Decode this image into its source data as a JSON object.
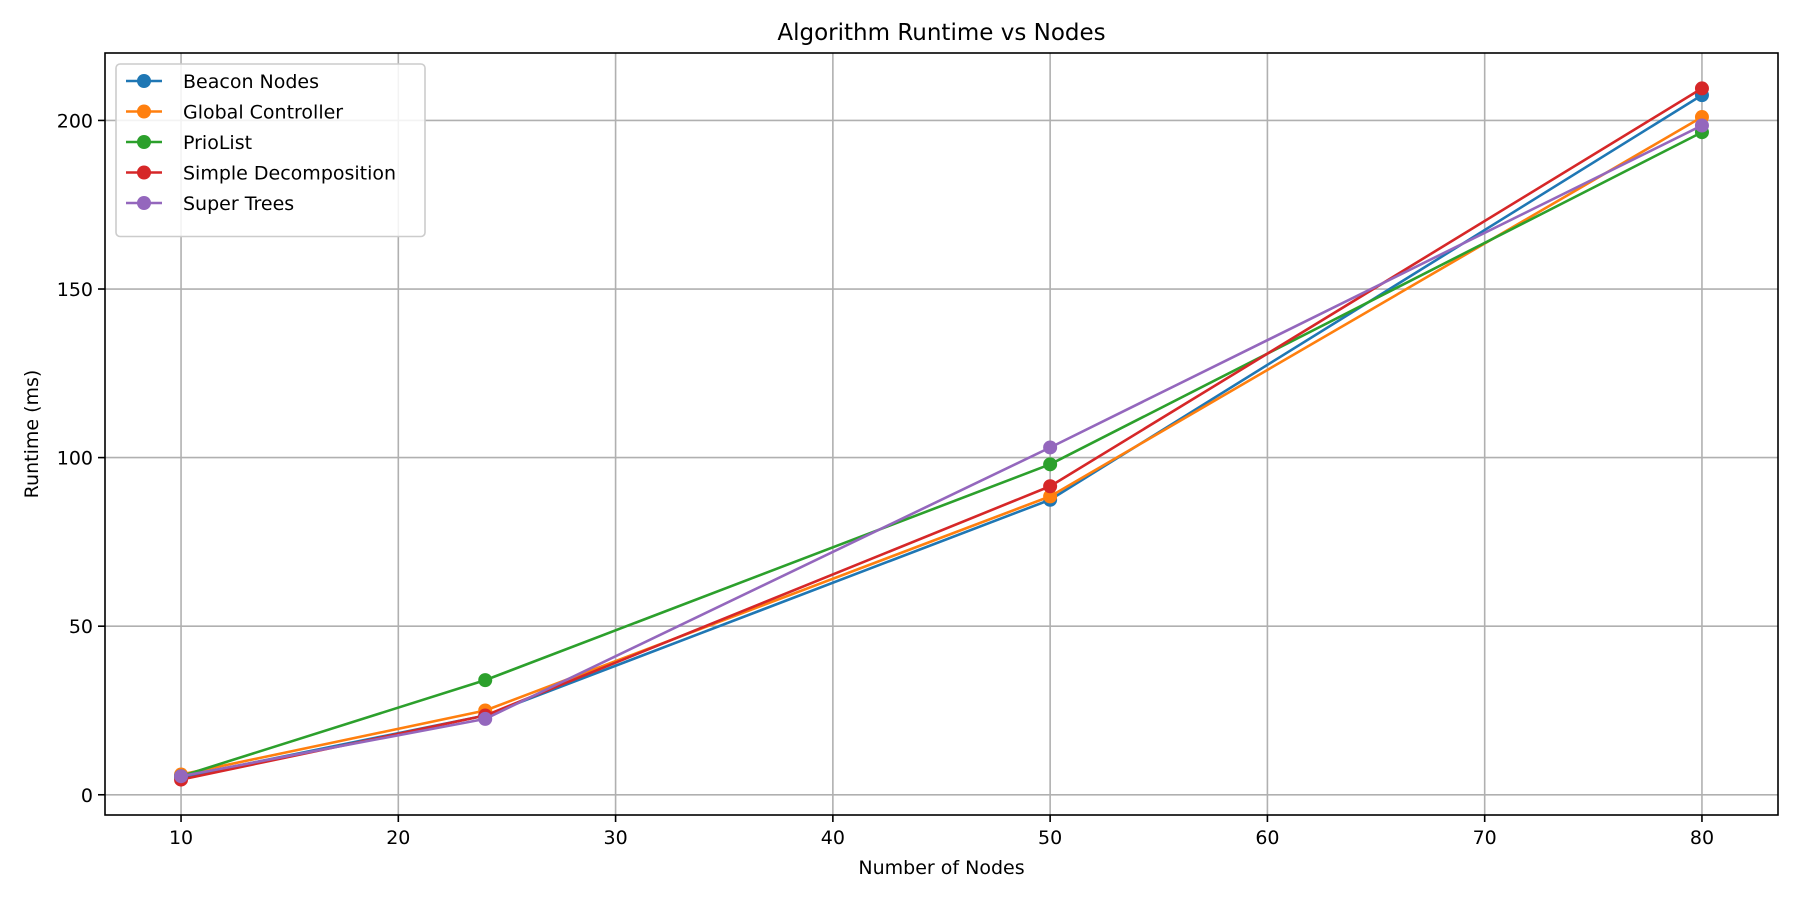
{
  "chart_data": {
    "type": "line",
    "title": "Algorithm Runtime vs Nodes",
    "xlabel": "Number of Nodes",
    "ylabel": "Runtime (ms)",
    "x": [
      10,
      24,
      50,
      80
    ],
    "xlim": [
      6.5,
      83.5
    ],
    "ylim": [
      -6,
      220
    ],
    "xticks": [
      10,
      20,
      30,
      40,
      50,
      60,
      70,
      80
    ],
    "yticks": [
      0,
      50,
      100,
      150,
      200
    ],
    "grid": true,
    "legend_position": "top-left",
    "series": [
      {
        "name": "Beacon Nodes",
        "color": "#1f77b4",
        "values": [
          5.2,
          23.5,
          87.5,
          207.5
        ]
      },
      {
        "name": "Global Controller",
        "color": "#ff7f0e",
        "values": [
          6.0,
          25.0,
          88.5,
          201.0
        ]
      },
      {
        "name": "PrioList",
        "color": "#2ca02c",
        "values": [
          5.5,
          34.0,
          98.0,
          196.5
        ]
      },
      {
        "name": "Simple Decomposition",
        "color": "#d62728",
        "values": [
          4.5,
          23.5,
          91.5,
          209.5
        ]
      },
      {
        "name": "Super Trees",
        "color": "#9467bd",
        "values": [
          5.5,
          22.5,
          103.0,
          198.5
        ]
      }
    ]
  }
}
